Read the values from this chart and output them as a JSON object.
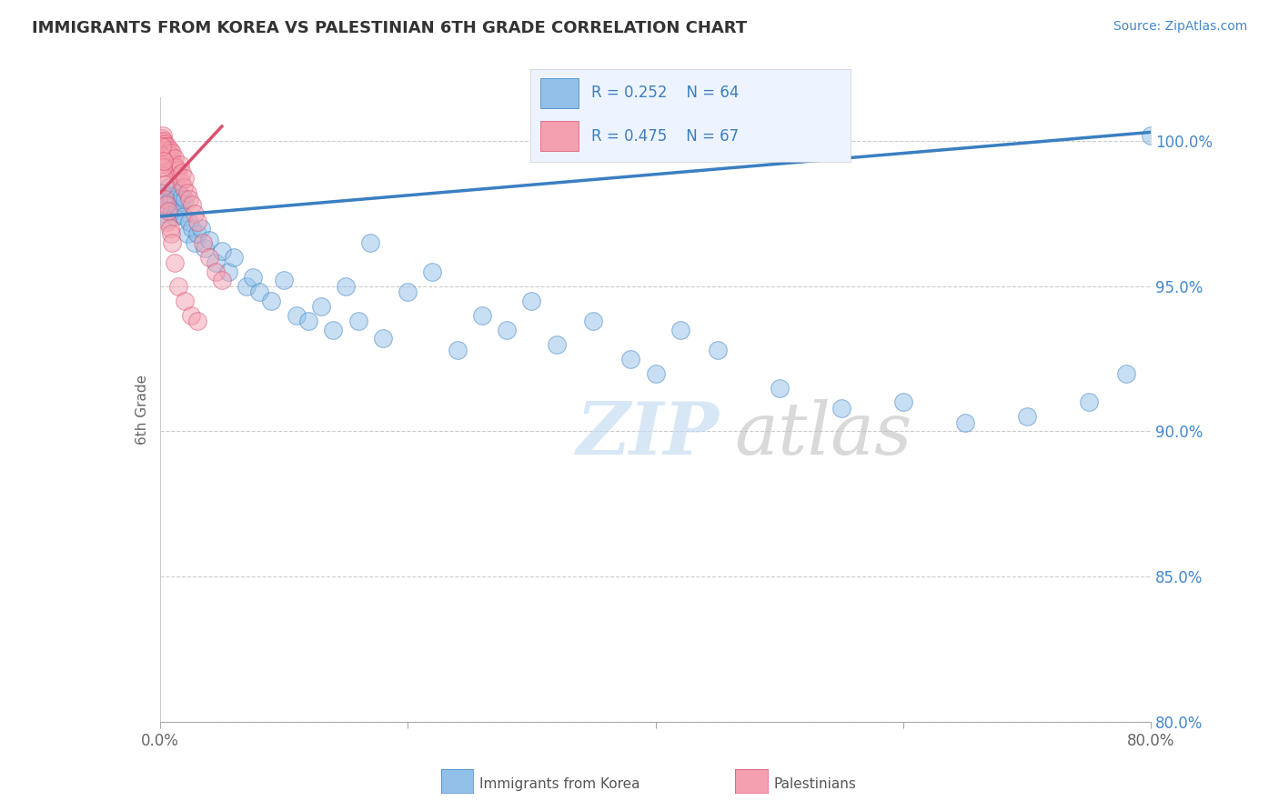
{
  "title": "IMMIGRANTS FROM KOREA VS PALESTINIAN 6TH GRADE CORRELATION CHART",
  "source_text": "Source: ZipAtlas.com",
  "ylabel": "6th Grade",
  "xlim": [
    0.0,
    80.0
  ],
  "ylim": [
    80.0,
    101.5
  ],
  "y_ticks_right": [
    80.0,
    85.0,
    90.0,
    95.0,
    100.0
  ],
  "y_tick_labels_right": [
    "80.0%",
    "85.0%",
    "90.0%",
    "95.0%",
    "100.0%"
  ],
  "legend_label1": "Immigrants from Korea",
  "legend_label2": "Palestinians",
  "legend_r1": "R = 0.252",
  "legend_n1": "N = 64",
  "legend_r2": "R = 0.475",
  "legend_n2": "N = 67",
  "color_blue": "#92C0E8",
  "color_pink": "#F4A0B0",
  "line_color_blue": "#3A7FC1",
  "line_color_pink": "#D94F6E",
  "blue_x": [
    0.2,
    0.3,
    0.4,
    0.5,
    0.6,
    0.7,
    0.8,
    0.9,
    1.0,
    1.1,
    1.2,
    1.3,
    1.4,
    1.5,
    1.6,
    1.7,
    1.8,
    1.9,
    2.0,
    2.2,
    2.4,
    2.6,
    2.8,
    3.0,
    3.3,
    3.6,
    4.0,
    4.5,
    5.0,
    5.5,
    6.0,
    7.0,
    7.5,
    8.0,
    9.0,
    10.0,
    11.0,
    12.0,
    13.0,
    14.0,
    15.0,
    16.0,
    17.0,
    18.0,
    20.0,
    22.0,
    24.0,
    26.0,
    28.0,
    30.0,
    32.0,
    35.0,
    38.0,
    40.0,
    42.0,
    45.0,
    50.0,
    55.0,
    60.0,
    65.0,
    70.0,
    75.0,
    78.0,
    80.0
  ],
  "blue_y": [
    97.8,
    98.2,
    97.5,
    98.0,
    97.3,
    98.4,
    97.9,
    98.1,
    97.6,
    98.3,
    97.4,
    98.0,
    97.7,
    98.2,
    97.5,
    97.9,
    98.1,
    97.4,
    98.0,
    96.8,
    97.2,
    97.0,
    96.5,
    96.8,
    97.0,
    96.3,
    96.6,
    95.8,
    96.2,
    95.5,
    96.0,
    95.0,
    95.3,
    94.8,
    94.5,
    95.2,
    94.0,
    93.8,
    94.3,
    93.5,
    95.0,
    93.8,
    96.5,
    93.2,
    94.8,
    95.5,
    92.8,
    94.0,
    93.5,
    94.5,
    93.0,
    93.8,
    92.5,
    92.0,
    93.5,
    92.8,
    91.5,
    90.8,
    91.0,
    90.3,
    90.5,
    91.0,
    92.0,
    100.2
  ],
  "pink_x": [
    0.05,
    0.08,
    0.1,
    0.12,
    0.15,
    0.18,
    0.2,
    0.22,
    0.25,
    0.28,
    0.3,
    0.32,
    0.35,
    0.38,
    0.4,
    0.42,
    0.45,
    0.48,
    0.5,
    0.55,
    0.6,
    0.65,
    0.7,
    0.75,
    0.8,
    0.85,
    0.9,
    0.95,
    1.0,
    1.1,
    1.2,
    1.3,
    1.4,
    1.5,
    1.6,
    1.7,
    1.8,
    1.9,
    2.0,
    2.2,
    2.4,
    2.6,
    2.8,
    3.0,
    3.5,
    4.0,
    4.5,
    5.0,
    0.08,
    0.12,
    0.15,
    0.22,
    0.25,
    0.3,
    0.35,
    0.4,
    0.5,
    0.6,
    0.7,
    0.8,
    0.9,
    1.0,
    1.2,
    1.5,
    2.0,
    2.5,
    3.0
  ],
  "pink_y": [
    99.5,
    99.8,
    100.0,
    99.6,
    100.1,
    99.7,
    99.9,
    100.2,
    99.4,
    99.8,
    100.0,
    99.5,
    99.7,
    99.9,
    99.3,
    99.6,
    99.8,
    99.4,
    99.7,
    99.5,
    99.8,
    99.2,
    99.6,
    99.4,
    99.7,
    99.1,
    99.5,
    99.3,
    99.6,
    99.2,
    99.4,
    99.1,
    99.0,
    98.8,
    99.2,
    98.6,
    98.9,
    98.4,
    98.7,
    98.2,
    98.0,
    97.8,
    97.5,
    97.2,
    96.5,
    96.0,
    95.5,
    95.2,
    99.2,
    99.5,
    99.8,
    98.8,
    99.1,
    99.3,
    98.5,
    98.0,
    97.8,
    97.2,
    97.6,
    97.0,
    96.8,
    96.5,
    95.8,
    95.0,
    94.5,
    94.0,
    93.8
  ]
}
